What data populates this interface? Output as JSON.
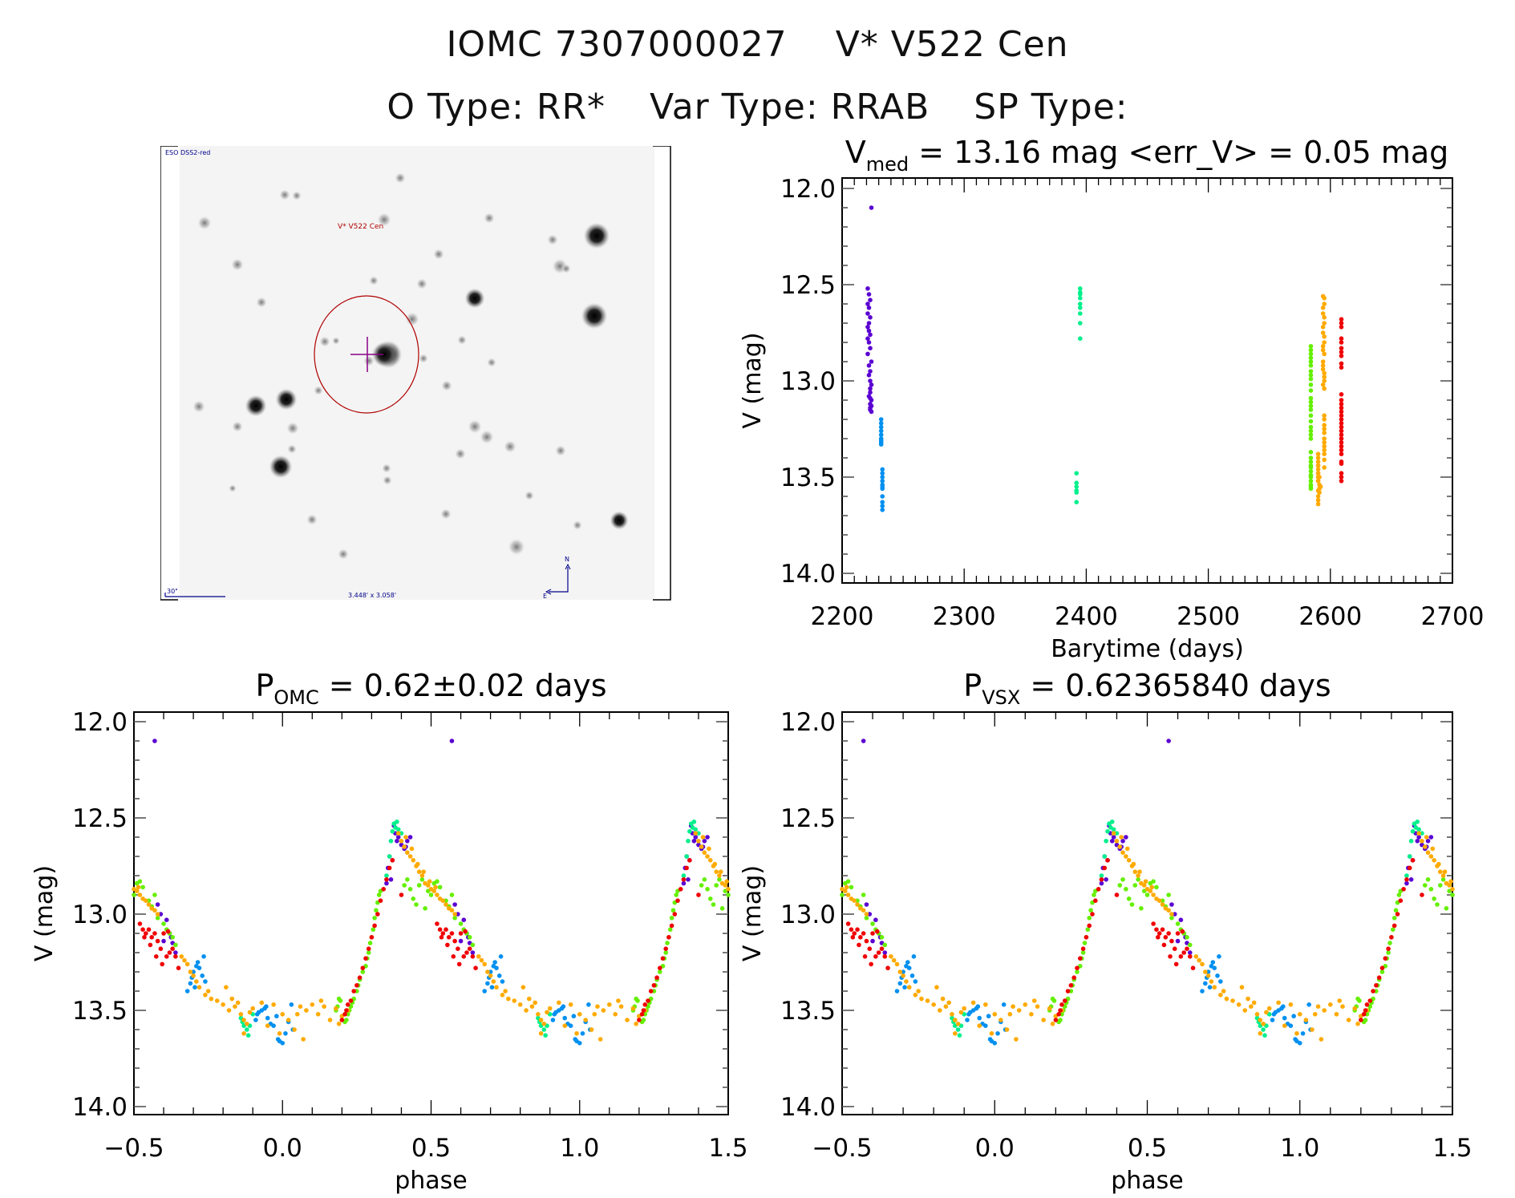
{
  "header": {
    "catalog_id": "IOMC 7307000027",
    "star_name": "V* V522 Cen",
    "o_type_label": "O Type:",
    "o_type": "RR*",
    "var_type_label": "Var Type:",
    "var_type": "RRAB",
    "sp_type_label": "SP Type:",
    "sp_type": ""
  },
  "finder_chart": {
    "survey_label": "ESO DSS2-red",
    "target_label": "V* V522 Cen",
    "scale_bar_label": "30\"",
    "fov_label": "3.448' x 3.058'",
    "north_label": "N",
    "east_label": "E"
  },
  "colors": {
    "purple": "#5a00d2",
    "blue": "#0090f0",
    "teal": "#00f08c",
    "green": "#64f000",
    "orange": "#ffaa00",
    "red": "#f00000",
    "axis": "#000000"
  },
  "chart_data": [
    {
      "id": "lightcurve",
      "type": "scatter",
      "title_main": "V",
      "title_sub": "med",
      "title_rest": " = 13.16 mag <err_V> = 0.05 mag",
      "xlabel": "Barytime (days)",
      "ylabel": "V (mag)",
      "xlim": [
        2200,
        2700
      ],
      "ylim": [
        14.0,
        12.0
      ],
      "y_inverted": true,
      "xticks": [
        "2200",
        "2300",
        "2400",
        "2500",
        "2600",
        "2700"
      ],
      "xtick_values": [
        2200,
        2300,
        2400,
        2500,
        2600,
        2700
      ],
      "yticks": [
        "12.0",
        "12.5",
        "13.0",
        "13.5",
        "14.0"
      ],
      "ytick_values": [
        12.0,
        12.5,
        13.0,
        13.5,
        14.0
      ],
      "series": [
        {
          "name": "season-1a",
          "color": "purple",
          "x": [
            2224,
            2221,
            2222,
            2223,
            2221,
            2222,
            2221,
            2223,
            2222,
            2221,
            2222,
            2223,
            2221,
            2222,
            2223,
            2221,
            2224,
            2222,
            2223,
            2222,
            2223,
            2224,
            2223,
            2223,
            2222,
            2223,
            2224,
            2223,
            2224,
            2223,
            2223,
            2224
          ],
          "y": [
            12.1,
            12.52,
            12.55,
            12.58,
            12.6,
            12.62,
            12.65,
            12.67,
            12.7,
            12.72,
            12.74,
            12.76,
            12.78,
            12.8,
            12.83,
            12.86,
            12.9,
            12.92,
            12.95,
            12.97,
            13.0,
            13.02,
            13.04,
            13.06,
            13.08,
            13.09,
            13.1,
            13.12,
            13.13,
            13.14,
            13.15,
            13.16
          ]
        },
        {
          "name": "season-1b",
          "color": "blue",
          "x": [
            2232,
            2232,
            2232,
            2232,
            2232,
            2232,
            2232,
            2232,
            2232,
            2233,
            2233,
            2233,
            2233,
            2233,
            2233,
            2233,
            2233,
            2233,
            2233,
            2233
          ],
          "y": [
            13.2,
            13.22,
            13.24,
            13.26,
            13.28,
            13.3,
            13.31,
            13.32,
            13.33,
            13.46,
            13.48,
            13.5,
            13.52,
            13.54,
            13.55,
            13.56,
            13.6,
            13.63,
            13.65,
            13.67
          ]
        },
        {
          "name": "season-2",
          "color": "teal",
          "x": [
            2395,
            2395,
            2395,
            2395,
            2395,
            2395,
            2395,
            2395,
            2395,
            2392,
            2392,
            2392,
            2392,
            2392,
            2392
          ],
          "y": [
            12.52,
            12.54,
            12.55,
            12.57,
            12.6,
            12.62,
            12.65,
            12.7,
            12.78,
            13.48,
            13.53,
            13.55,
            13.57,
            13.58,
            13.63
          ]
        },
        {
          "name": "season-3a",
          "color": "green",
          "x": [
            2584,
            2584,
            2584,
            2584,
            2584,
            2584,
            2584,
            2584,
            2584,
            2584,
            2584,
            2584,
            2584,
            2584,
            2584,
            2584,
            2584,
            2584,
            2584,
            2584,
            2584,
            2584,
            2584,
            2584,
            2584,
            2584,
            2584,
            2584,
            2584,
            2584,
            2584,
            2584,
            2584
          ],
          "y": [
            12.82,
            12.84,
            12.86,
            12.88,
            12.9,
            12.92,
            12.95,
            12.97,
            12.99,
            13.02,
            13.05,
            13.09,
            13.11,
            13.13,
            13.15,
            13.18,
            13.21,
            13.24,
            13.26,
            13.28,
            13.3,
            13.37,
            13.4,
            13.42,
            13.44,
            13.45,
            13.47,
            13.49,
            13.5,
            13.52,
            13.54,
            13.55,
            13.56
          ]
        },
        {
          "name": "season-3b",
          "color": "orange",
          "x": [
            2594,
            2595,
            2595,
            2594,
            2594,
            2595,
            2595,
            2594,
            2594,
            2595,
            2595,
            2594,
            2594,
            2595,
            2594,
            2594,
            2594,
            2595,
            2595,
            2595,
            2594,
            2595,
            2595,
            2595,
            2595,
            2595,
            2595,
            2595,
            2595,
            2595,
            2595,
            2595,
            2595,
            2595,
            2590,
            2590,
            2590,
            2590,
            2590,
            2590,
            2590,
            2590,
            2591,
            2591,
            2591,
            2590,
            2590,
            2590,
            2590,
            2590,
            2591,
            2590,
            2592,
            2590
          ],
          "y": [
            12.56,
            12.57,
            12.6,
            12.62,
            12.65,
            12.67,
            12.7,
            12.72,
            12.75,
            12.77,
            12.8,
            12.82,
            12.84,
            12.86,
            12.9,
            12.92,
            12.94,
            12.96,
            12.98,
            13.0,
            13.02,
            13.04,
            13.18,
            13.2,
            13.23,
            13.25,
            13.27,
            13.3,
            13.32,
            13.34,
            13.36,
            13.38,
            13.41,
            13.45,
            13.38,
            13.4,
            13.42,
            13.44,
            13.46,
            13.48,
            13.5,
            13.52,
            13.54,
            13.56,
            13.58,
            13.6,
            13.62,
            13.64,
            13.44,
            13.48,
            13.5,
            13.52,
            13.55,
            13.57
          ]
        },
        {
          "name": "season-3c",
          "color": "red",
          "x": [
            2609,
            2609,
            2609,
            2609,
            2609,
            2609,
            2609,
            2609,
            2609,
            2609,
            2609,
            2609,
            2609,
            2609,
            2609,
            2609,
            2609,
            2609,
            2609,
            2609,
            2609,
            2609,
            2609,
            2609,
            2609,
            2609,
            2609,
            2609,
            2609,
            2609,
            2609
          ],
          "y": [
            12.68,
            12.7,
            12.72,
            12.78,
            12.8,
            12.83,
            12.85,
            12.87,
            12.91,
            12.93,
            13.07,
            13.1,
            13.12,
            13.14,
            13.16,
            13.18,
            13.2,
            13.22,
            13.24,
            13.26,
            13.28,
            13.3,
            13.32,
            13.34,
            13.36,
            13.38,
            13.42,
            13.43,
            13.48,
            13.5,
            13.52
          ]
        }
      ]
    },
    {
      "id": "phase-omc",
      "type": "scatter",
      "title_main": "P",
      "title_sub": "OMC",
      "title_rest": " = 0.62±0.02 days",
      "xlabel": "phase",
      "ylabel": "V (mag)",
      "xlim": [
        -0.5,
        1.5
      ],
      "ylim": [
        14.0,
        12.0
      ],
      "y_inverted": true,
      "xticks": [
        "−0.5",
        "0.0",
        "0.5",
        "1.0",
        "1.5"
      ],
      "xtick_values": [
        -0.5,
        0.0,
        0.5,
        1.0,
        1.5
      ],
      "yticks": [
        "12.0",
        "12.5",
        "13.0",
        "13.5",
        "14.0"
      ],
      "ytick_values": [
        12.0,
        12.5,
        13.0,
        13.5,
        14.0
      ],
      "folded_series_ref": "phase_points",
      "repeat_cycles": [
        -1,
        0,
        1
      ]
    },
    {
      "id": "phase-vsx",
      "type": "scatter",
      "title_main": "P",
      "title_sub": "VSX",
      "title_rest": " = 0.62365840 days",
      "xlabel": "phase",
      "ylabel": "V (mag)",
      "xlim": [
        -0.5,
        1.5
      ],
      "ylim": [
        14.0,
        12.0
      ],
      "y_inverted": true,
      "xticks": [
        "−0.5",
        "0.0",
        "0.5",
        "1.0",
        "1.5"
      ],
      "xtick_values": [
        -0.5,
        0.0,
        0.5,
        1.0,
        1.5
      ],
      "yticks": [
        "12.0",
        "12.5",
        "13.0",
        "13.5",
        "14.0"
      ],
      "ytick_values": [
        12.0,
        12.5,
        13.0,
        13.5,
        14.0
      ],
      "folded_series_ref": "phase_points",
      "repeat_cycles": [
        -1,
        0,
        1
      ]
    }
  ],
  "phase_points": [
    {
      "color": "purple",
      "phase": [
        0.57,
        0.375,
        0.38,
        0.39,
        0.385,
        0.4,
        0.41,
        0.36,
        0.37,
        0.355,
        0.35,
        0.365,
        0.42,
        0.415,
        0.43,
        0.58,
        0.59,
        0.61,
        0.62,
        0.625,
        0.6,
        0.63,
        0.64
      ],
      "mag": [
        12.1,
        12.54,
        12.58,
        12.6,
        12.62,
        12.64,
        12.66,
        12.7,
        12.72,
        12.76,
        12.84,
        12.82,
        12.62,
        12.65,
        12.6,
        12.95,
        13.0,
        13.03,
        13.1,
        13.12,
        13.14,
        13.15,
        13.2
      ]
    },
    {
      "color": "blue",
      "phase": [
        0.7,
        0.71,
        0.72,
        0.73,
        0.74,
        0.735,
        0.715,
        0.705,
        0.69,
        0.68,
        0.695,
        0.91,
        0.915,
        0.92,
        0.93,
        0.94,
        0.945,
        0.95,
        0.96,
        0.97,
        0.98,
        0.985,
        0.99,
        1.0,
        1.01,
        1.02,
        1.03,
        1.035
      ],
      "mag": [
        13.3,
        13.27,
        13.28,
        13.32,
        13.35,
        13.22,
        13.25,
        13.38,
        13.36,
        13.4,
        13.33,
        13.55,
        13.52,
        13.51,
        13.5,
        13.49,
        13.48,
        13.54,
        13.57,
        13.58,
        13.53,
        13.65,
        13.66,
        13.67,
        13.62,
        13.56,
        13.47,
        13.6
      ]
    },
    {
      "color": "teal",
      "phase": [
        0.375,
        0.38,
        0.385,
        0.39,
        0.4,
        0.365,
        0.37,
        0.36,
        0.35,
        0.86,
        0.865,
        0.87,
        0.88,
        0.885,
        0.89,
        0.9
      ],
      "mag": [
        12.53,
        12.55,
        12.52,
        12.56,
        12.58,
        12.62,
        12.57,
        12.7,
        12.8,
        13.54,
        13.56,
        13.58,
        13.6,
        13.63,
        13.58,
        13.52
      ]
    },
    {
      "color": "green",
      "phase": [
        0.58,
        0.6,
        0.61,
        0.62,
        0.63,
        0.64,
        0.55,
        0.56,
        0.57,
        0.53,
        0.52,
        0.51,
        0.5,
        0.49,
        0.47,
        0.46,
        0.44,
        0.43,
        0.42,
        0.41,
        0.48,
        0.45,
        0.27,
        0.28,
        0.285,
        0.29,
        0.295,
        0.3,
        0.305,
        0.31,
        0.315,
        0.32,
        0.325,
        0.33,
        0.26,
        0.255,
        0.25,
        0.24,
        0.235,
        0.23,
        0.225,
        0.22,
        0.215,
        0.21,
        0.2,
        0.195,
        0.19,
        0.185,
        0.18
      ],
      "mag": [
        13.02,
        13.05,
        13.08,
        13.1,
        13.12,
        13.16,
        12.93,
        12.96,
        12.9,
        12.86,
        12.83,
        12.84,
        12.9,
        12.88,
        12.82,
        12.85,
        12.92,
        12.87,
        12.82,
        12.85,
        12.97,
        12.95,
        13.3,
        13.27,
        13.23,
        13.2,
        13.15,
        13.12,
        13.08,
        13.02,
        12.98,
        12.94,
        12.9,
        12.88,
        13.34,
        13.37,
        13.4,
        13.44,
        13.46,
        13.48,
        13.5,
        13.52,
        13.55,
        13.56,
        13.53,
        13.45,
        13.44,
        13.48,
        13.5
      ]
    },
    {
      "color": "orange",
      "phase": [
        0.39,
        0.4,
        0.41,
        0.42,
        0.43,
        0.44,
        0.45,
        0.46,
        0.47,
        0.48,
        0.49,
        0.5,
        0.51,
        0.52,
        0.53,
        0.54,
        0.55,
        0.56,
        0.57,
        0.58,
        0.415,
        0.435,
        0.455,
        0.475,
        0.495,
        0.515,
        0.66,
        0.67,
        0.68,
        0.69,
        0.7,
        0.71,
        0.72,
        0.74,
        0.75,
        0.76,
        0.78,
        0.8,
        0.82,
        0.84,
        0.85,
        0.86,
        0.87,
        0.88,
        0.89,
        0.9,
        0.95,
        0.97,
        1.0,
        1.02,
        1.04,
        1.05,
        1.06,
        1.08,
        1.1,
        1.12,
        1.14,
        1.16,
        1.18,
        1.2,
        1.22,
        0.81,
        0.83,
        0.87,
        0.93,
        0.99,
        1.07,
        1.13,
        1.19
      ],
      "mag": [
        12.58,
        12.62,
        12.65,
        12.68,
        12.7,
        12.72,
        12.75,
        12.78,
        12.8,
        12.84,
        12.85,
        12.87,
        12.88,
        12.9,
        12.92,
        12.93,
        12.95,
        12.97,
        12.98,
        13.0,
        12.6,
        12.66,
        12.74,
        12.78,
        12.83,
        12.86,
        13.22,
        13.24,
        13.26,
        13.3,
        13.32,
        13.35,
        13.38,
        13.42,
        13.4,
        13.44,
        13.45,
        13.47,
        13.5,
        13.48,
        13.46,
        13.52,
        13.55,
        13.57,
        13.51,
        13.49,
        13.58,
        13.47,
        13.52,
        13.55,
        13.6,
        13.52,
        13.48,
        13.5,
        13.47,
        13.52,
        13.48,
        13.55,
        13.49,
        13.53,
        13.5,
        13.38,
        13.44,
        13.62,
        13.46,
        13.62,
        13.65,
        13.45,
        13.57
      ]
    },
    {
      "color": "red",
      "phase": [
        0.27,
        0.28,
        0.29,
        0.3,
        0.31,
        0.32,
        0.33,
        0.34,
        0.35,
        0.36,
        0.37,
        0.4,
        0.26,
        0.25,
        0.24,
        0.23,
        0.22,
        0.215,
        0.21,
        0.2,
        0.52,
        0.53,
        0.54,
        0.55,
        0.56,
        0.57,
        0.58,
        0.59,
        0.6,
        0.61,
        0.62,
        0.63,
        0.64,
        0.65,
        0.535,
        0.555,
        0.575,
        0.595,
        0.615
      ],
      "mag": [
        13.28,
        13.23,
        13.18,
        13.12,
        13.06,
        13.0,
        12.93,
        12.87,
        12.82,
        12.76,
        12.72,
        12.9,
        13.33,
        13.37,
        13.4,
        13.45,
        13.47,
        13.5,
        13.52,
        13.55,
        13.05,
        13.08,
        13.1,
        13.08,
        13.12,
        13.1,
        13.14,
        13.18,
        13.1,
        13.22,
        13.2,
        13.18,
        13.22,
        13.28,
        13.12,
        13.16,
        13.22,
        13.26,
        13.09
      ]
    }
  ],
  "plots": {
    "lightcurve": {
      "title_main": "V",
      "title_sub": "med",
      "title_rest": " = 13.16 mag <err_V> = 0.05 mag"
    },
    "phase_omc": {
      "title_main": "P",
      "title_sub": "OMC",
      "title_rest": " = 0.62±0.02 days"
    },
    "phase_vsx": {
      "title_main": "P",
      "title_sub": "VSX",
      "title_rest": " = 0.62365840 days"
    }
  }
}
